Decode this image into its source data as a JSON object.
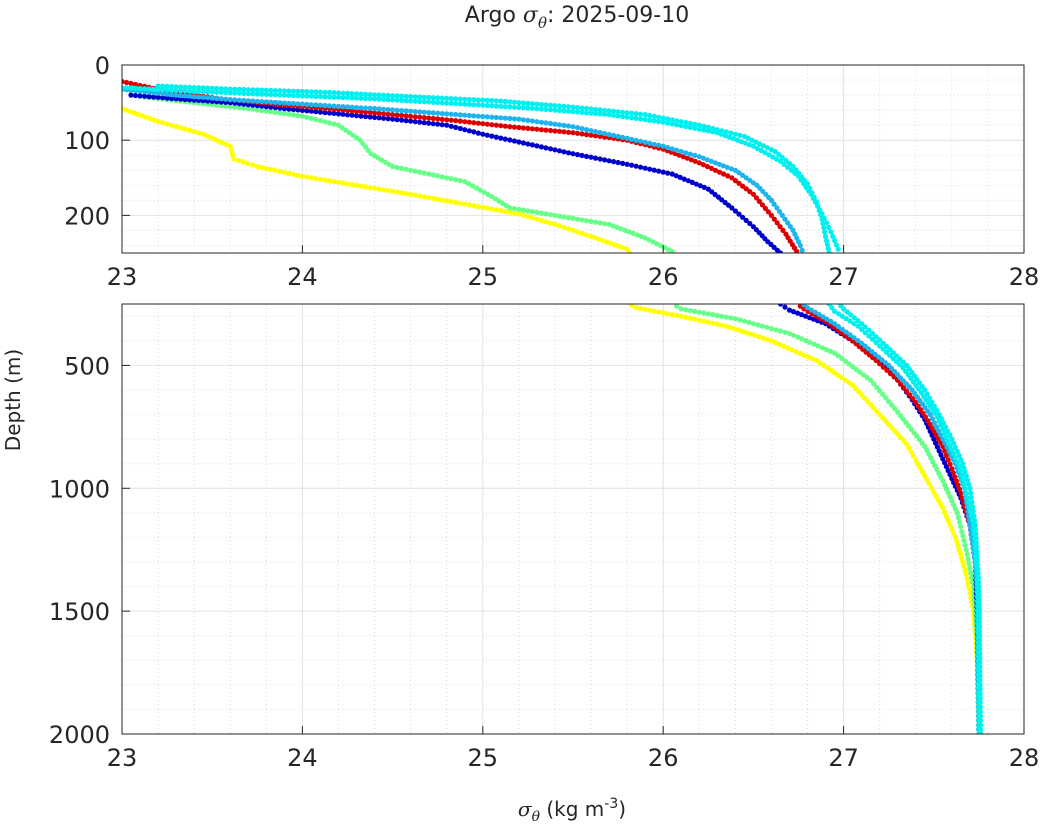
{
  "chart_data": {
    "type": "scatter",
    "title_prefix": "Argo ",
    "title_symbol": "σ",
    "title_sub": "θ",
    "title_suffix": ": 2025-09-10",
    "xlabel_symbol": "σ",
    "xlabel_sub": "θ",
    "xlabel_unit": " (kg m",
    "xlabel_exp": "-3",
    "xlabel_close": ")",
    "ylabel": "Depth (m)",
    "grid": true,
    "y_reversed": true,
    "panels": [
      {
        "name": "upper",
        "xlim": [
          23,
          28
        ],
        "ylim": [
          0,
          250
        ],
        "xticks": [
          "23",
          "24",
          "25",
          "26",
          "27",
          "28"
        ],
        "yticks": [
          "0",
          "100",
          "200"
        ],
        "ytick_values": [
          0,
          100,
          200
        ]
      },
      {
        "name": "lower",
        "xlim": [
          23,
          28
        ],
        "ylim": [
          250,
          2000
        ],
        "xticks": [
          "23",
          "24",
          "25",
          "26",
          "27",
          "28"
        ],
        "yticks": [
          "500",
          "1000",
          "1500",
          "2000"
        ],
        "ytick_values": [
          500,
          1000,
          1500,
          2000
        ]
      }
    ],
    "series": [
      {
        "color": "#ffff00",
        "points": [
          [
            23.0,
            58
          ],
          [
            23.2,
            75
          ],
          [
            23.45,
            92
          ],
          [
            23.6,
            108
          ],
          [
            23.62,
            125
          ],
          [
            23.75,
            135
          ],
          [
            24.0,
            148
          ],
          [
            24.3,
            160
          ],
          [
            24.6,
            172
          ],
          [
            24.9,
            185
          ],
          [
            25.2,
            198
          ],
          [
            25.4,
            212
          ],
          [
            25.6,
            228
          ],
          [
            25.8,
            245
          ],
          [
            25.85,
            265
          ],
          [
            26.1,
            300
          ],
          [
            26.35,
            340
          ],
          [
            26.6,
            400
          ],
          [
            26.85,
            480
          ],
          [
            27.05,
            580
          ],
          [
            27.2,
            700
          ],
          [
            27.35,
            820
          ],
          [
            27.45,
            950
          ],
          [
            27.55,
            1080
          ],
          [
            27.62,
            1200
          ],
          [
            27.68,
            1350
          ],
          [
            27.72,
            1500
          ],
          [
            27.74,
            1700
          ],
          [
            27.75,
            2000
          ]
        ]
      },
      {
        "color": "#66ff88",
        "points": [
          [
            23.1,
            42
          ],
          [
            23.4,
            50
          ],
          [
            23.7,
            58
          ],
          [
            24.0,
            68
          ],
          [
            24.2,
            80
          ],
          [
            24.32,
            100
          ],
          [
            24.38,
            118
          ],
          [
            24.5,
            135
          ],
          [
            24.7,
            145
          ],
          [
            24.9,
            155
          ],
          [
            25.05,
            175
          ],
          [
            25.15,
            190
          ],
          [
            25.4,
            200
          ],
          [
            25.7,
            212
          ],
          [
            25.9,
            230
          ],
          [
            26.05,
            248
          ],
          [
            26.1,
            270
          ],
          [
            26.4,
            310
          ],
          [
            26.7,
            370
          ],
          [
            26.95,
            450
          ],
          [
            27.15,
            560
          ],
          [
            27.3,
            690
          ],
          [
            27.45,
            830
          ],
          [
            27.55,
            970
          ],
          [
            27.63,
            1100
          ],
          [
            27.68,
            1250
          ],
          [
            27.72,
            1400
          ],
          [
            27.74,
            1600
          ],
          [
            27.75,
            2000
          ]
        ]
      },
      {
        "color": "#0000cc",
        "points": [
          [
            23.05,
            40
          ],
          [
            23.3,
            45
          ],
          [
            23.6,
            50
          ],
          [
            23.9,
            58
          ],
          [
            24.2,
            65
          ],
          [
            24.5,
            72
          ],
          [
            24.8,
            80
          ],
          [
            25.0,
            92
          ],
          [
            25.25,
            105
          ],
          [
            25.5,
            118
          ],
          [
            25.8,
            132
          ],
          [
            26.05,
            145
          ],
          [
            26.25,
            165
          ],
          [
            26.38,
            190
          ],
          [
            26.5,
            215
          ],
          [
            26.58,
            235
          ],
          [
            26.65,
            250
          ],
          [
            26.7,
            275
          ],
          [
            26.9,
            330
          ],
          [
            27.05,
            400
          ],
          [
            27.2,
            480
          ],
          [
            27.3,
            560
          ],
          [
            27.38,
            640
          ],
          [
            27.45,
            720
          ],
          [
            27.5,
            800
          ],
          [
            27.55,
            880
          ],
          [
            27.6,
            960
          ],
          [
            27.65,
            1040
          ],
          [
            27.7,
            1150
          ],
          [
            27.73,
            1300
          ],
          [
            27.74,
            1500
          ],
          [
            27.75,
            2000
          ]
        ]
      },
      {
        "color": "#dd0000",
        "points": [
          [
            23.0,
            22
          ],
          [
            23.25,
            35
          ],
          [
            23.55,
            45
          ],
          [
            23.85,
            52
          ],
          [
            24.15,
            58
          ],
          [
            24.5,
            66
          ],
          [
            24.85,
            74
          ],
          [
            25.15,
            82
          ],
          [
            25.5,
            90
          ],
          [
            25.8,
            100
          ],
          [
            26.0,
            112
          ],
          [
            26.2,
            130
          ],
          [
            26.38,
            150
          ],
          [
            26.5,
            172
          ],
          [
            26.6,
            200
          ],
          [
            26.68,
            225
          ],
          [
            26.74,
            248
          ],
          [
            26.78,
            270
          ],
          [
            26.92,
            330
          ],
          [
            27.05,
            400
          ],
          [
            27.18,
            480
          ],
          [
            27.3,
            560
          ],
          [
            27.4,
            650
          ],
          [
            27.48,
            740
          ],
          [
            27.55,
            830
          ],
          [
            27.6,
            920
          ],
          [
            27.65,
            1020
          ],
          [
            27.7,
            1150
          ],
          [
            27.73,
            1300
          ],
          [
            27.75,
            1500
          ],
          [
            27.75,
            2000
          ]
        ]
      },
      {
        "color": "#1eb4ee",
        "points": [
          [
            23.0,
            32
          ],
          [
            23.3,
            40
          ],
          [
            23.6,
            46
          ],
          [
            24.0,
            52
          ],
          [
            24.4,
            58
          ],
          [
            24.8,
            65
          ],
          [
            25.2,
            72
          ],
          [
            25.5,
            82
          ],
          [
            25.75,
            95
          ],
          [
            26.0,
            108
          ],
          [
            26.2,
            122
          ],
          [
            26.4,
            140
          ],
          [
            26.52,
            160
          ],
          [
            26.6,
            180
          ],
          [
            26.66,
            200
          ],
          [
            26.72,
            220
          ],
          [
            26.76,
            240
          ],
          [
            26.8,
            265
          ],
          [
            26.95,
            330
          ],
          [
            27.1,
            410
          ],
          [
            27.25,
            500
          ],
          [
            27.38,
            600
          ],
          [
            27.48,
            700
          ],
          [
            27.55,
            800
          ],
          [
            27.62,
            900
          ],
          [
            27.67,
            1000
          ],
          [
            27.7,
            1150
          ],
          [
            27.73,
            1300
          ],
          [
            27.75,
            1500
          ],
          [
            27.75,
            2000
          ]
        ]
      },
      {
        "color": "#00f0f0",
        "points": [
          [
            23.0,
            30
          ],
          [
            23.4,
            35
          ],
          [
            23.9,
            40
          ],
          [
            24.4,
            45
          ],
          [
            24.9,
            52
          ],
          [
            25.3,
            58
          ],
          [
            25.7,
            66
          ],
          [
            26.0,
            76
          ],
          [
            26.3,
            90
          ],
          [
            26.5,
            108
          ],
          [
            26.65,
            128
          ],
          [
            26.75,
            148
          ],
          [
            26.82,
            172
          ],
          [
            26.88,
            198
          ],
          [
            26.93,
            222
          ],
          [
            26.97,
            245
          ],
          [
            27.0,
            270
          ],
          [
            27.1,
            330
          ],
          [
            27.22,
            410
          ],
          [
            27.35,
            500
          ],
          [
            27.45,
            600
          ],
          [
            27.53,
            700
          ],
          [
            27.6,
            800
          ],
          [
            27.66,
            900
          ],
          [
            27.7,
            1000
          ],
          [
            27.73,
            1150
          ],
          [
            27.75,
            1400
          ],
          [
            27.76,
            2000
          ]
        ]
      },
      {
        "color": "#00f0f0",
        "points": [
          [
            23.2,
            28
          ],
          [
            23.6,
            32
          ],
          [
            24.1,
            36
          ],
          [
            24.6,
            42
          ],
          [
            25.1,
            48
          ],
          [
            25.5,
            56
          ],
          [
            25.9,
            66
          ],
          [
            26.2,
            80
          ],
          [
            26.45,
            95
          ],
          [
            26.62,
            115
          ],
          [
            26.72,
            135
          ],
          [
            26.8,
            158
          ],
          [
            26.85,
            182
          ],
          [
            26.88,
            205
          ],
          [
            26.9,
            228
          ],
          [
            26.92,
            250
          ],
          [
            26.95,
            280
          ],
          [
            27.08,
            340
          ],
          [
            27.2,
            420
          ],
          [
            27.33,
            510
          ],
          [
            27.43,
            610
          ],
          [
            27.52,
            710
          ],
          [
            27.58,
            810
          ],
          [
            27.64,
            910
          ],
          [
            27.68,
            1020
          ],
          [
            27.72,
            1150
          ],
          [
            27.74,
            1350
          ],
          [
            27.75,
            2000
          ]
        ]
      }
    ]
  }
}
